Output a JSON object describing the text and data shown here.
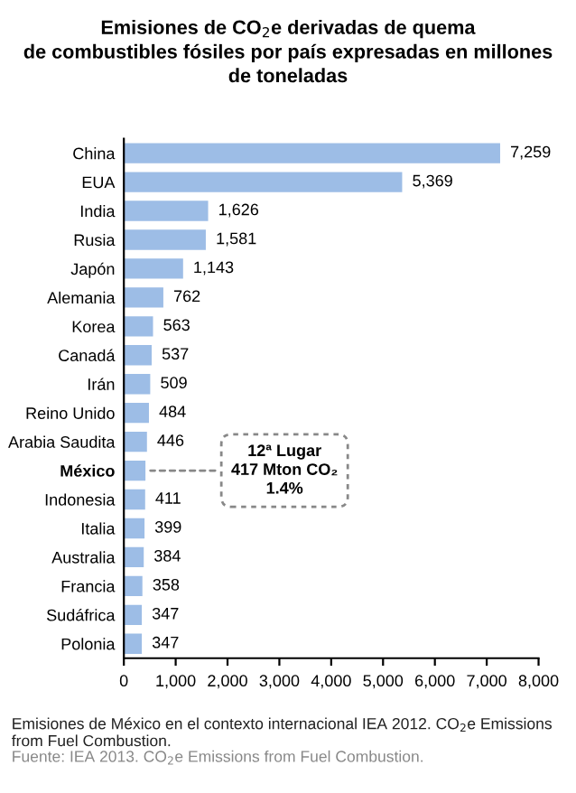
{
  "chart_data": {
    "type": "bar",
    "orientation": "horizontal",
    "title": "Emisiones de CO$_{2}$e derivadas de quema\nde combustibles fósiles por país expresadas en millones\nde toneladas",
    "categories": [
      "China",
      "EUA",
      "India",
      "Rusia",
      "Japón",
      "Alemania",
      "Korea",
      "Canadá",
      "Irán",
      "Reino Unido",
      "Arabia Saudita",
      "México",
      "Indonesia",
      "Italia",
      "Australia",
      "Francia",
      "Sudáfrica",
      "Polonia"
    ],
    "values": [
      7259,
      5369,
      1626,
      1581,
      1143,
      762,
      563,
      537,
      509,
      484,
      446,
      417,
      411,
      399,
      384,
      358,
      347,
      347
    ],
    "value_labels": [
      "7,259",
      "5,369",
      "1,626",
      "1,581",
      "1,143",
      "762",
      "563",
      "537",
      "509",
      "484",
      "446",
      null,
      "411",
      "399",
      "384",
      "358",
      "347",
      "347"
    ],
    "color": "#9dbde6",
    "xlim": [
      0,
      8000
    ],
    "xticks": [
      0,
      {
        "value": 1000,
        "label": "1,000"
      },
      {
        "value": 2000,
        "label": "2,000"
      },
      {
        "value": 3000,
        "label": "3,000"
      },
      {
        "value": 4000,
        "label": "4,000"
      },
      {
        "value": 5000,
        "label": "5,000"
      },
      {
        "value": 6000,
        "label": "6,000"
      },
      {
        "value": 7000,
        "label": "7,000"
      },
      {
        "value": 8000,
        "label": "8,000"
      }
    ],
    "grid": false,
    "legend": false,
    "annotations": [
      {
        "text": "12ª Lugar\n417 Mton CO₂\n1.4%",
        "x": 417,
        "y": "México"
      },
      "Emisiones de México en el contexto internacional IEA 2012. CO$_{2}$e Emissions from Fuel Combustion.",
      "Fuente: IEA 2013. CO$_{2}$e Emissions from Fuel Combustion."
    ]
  }
}
